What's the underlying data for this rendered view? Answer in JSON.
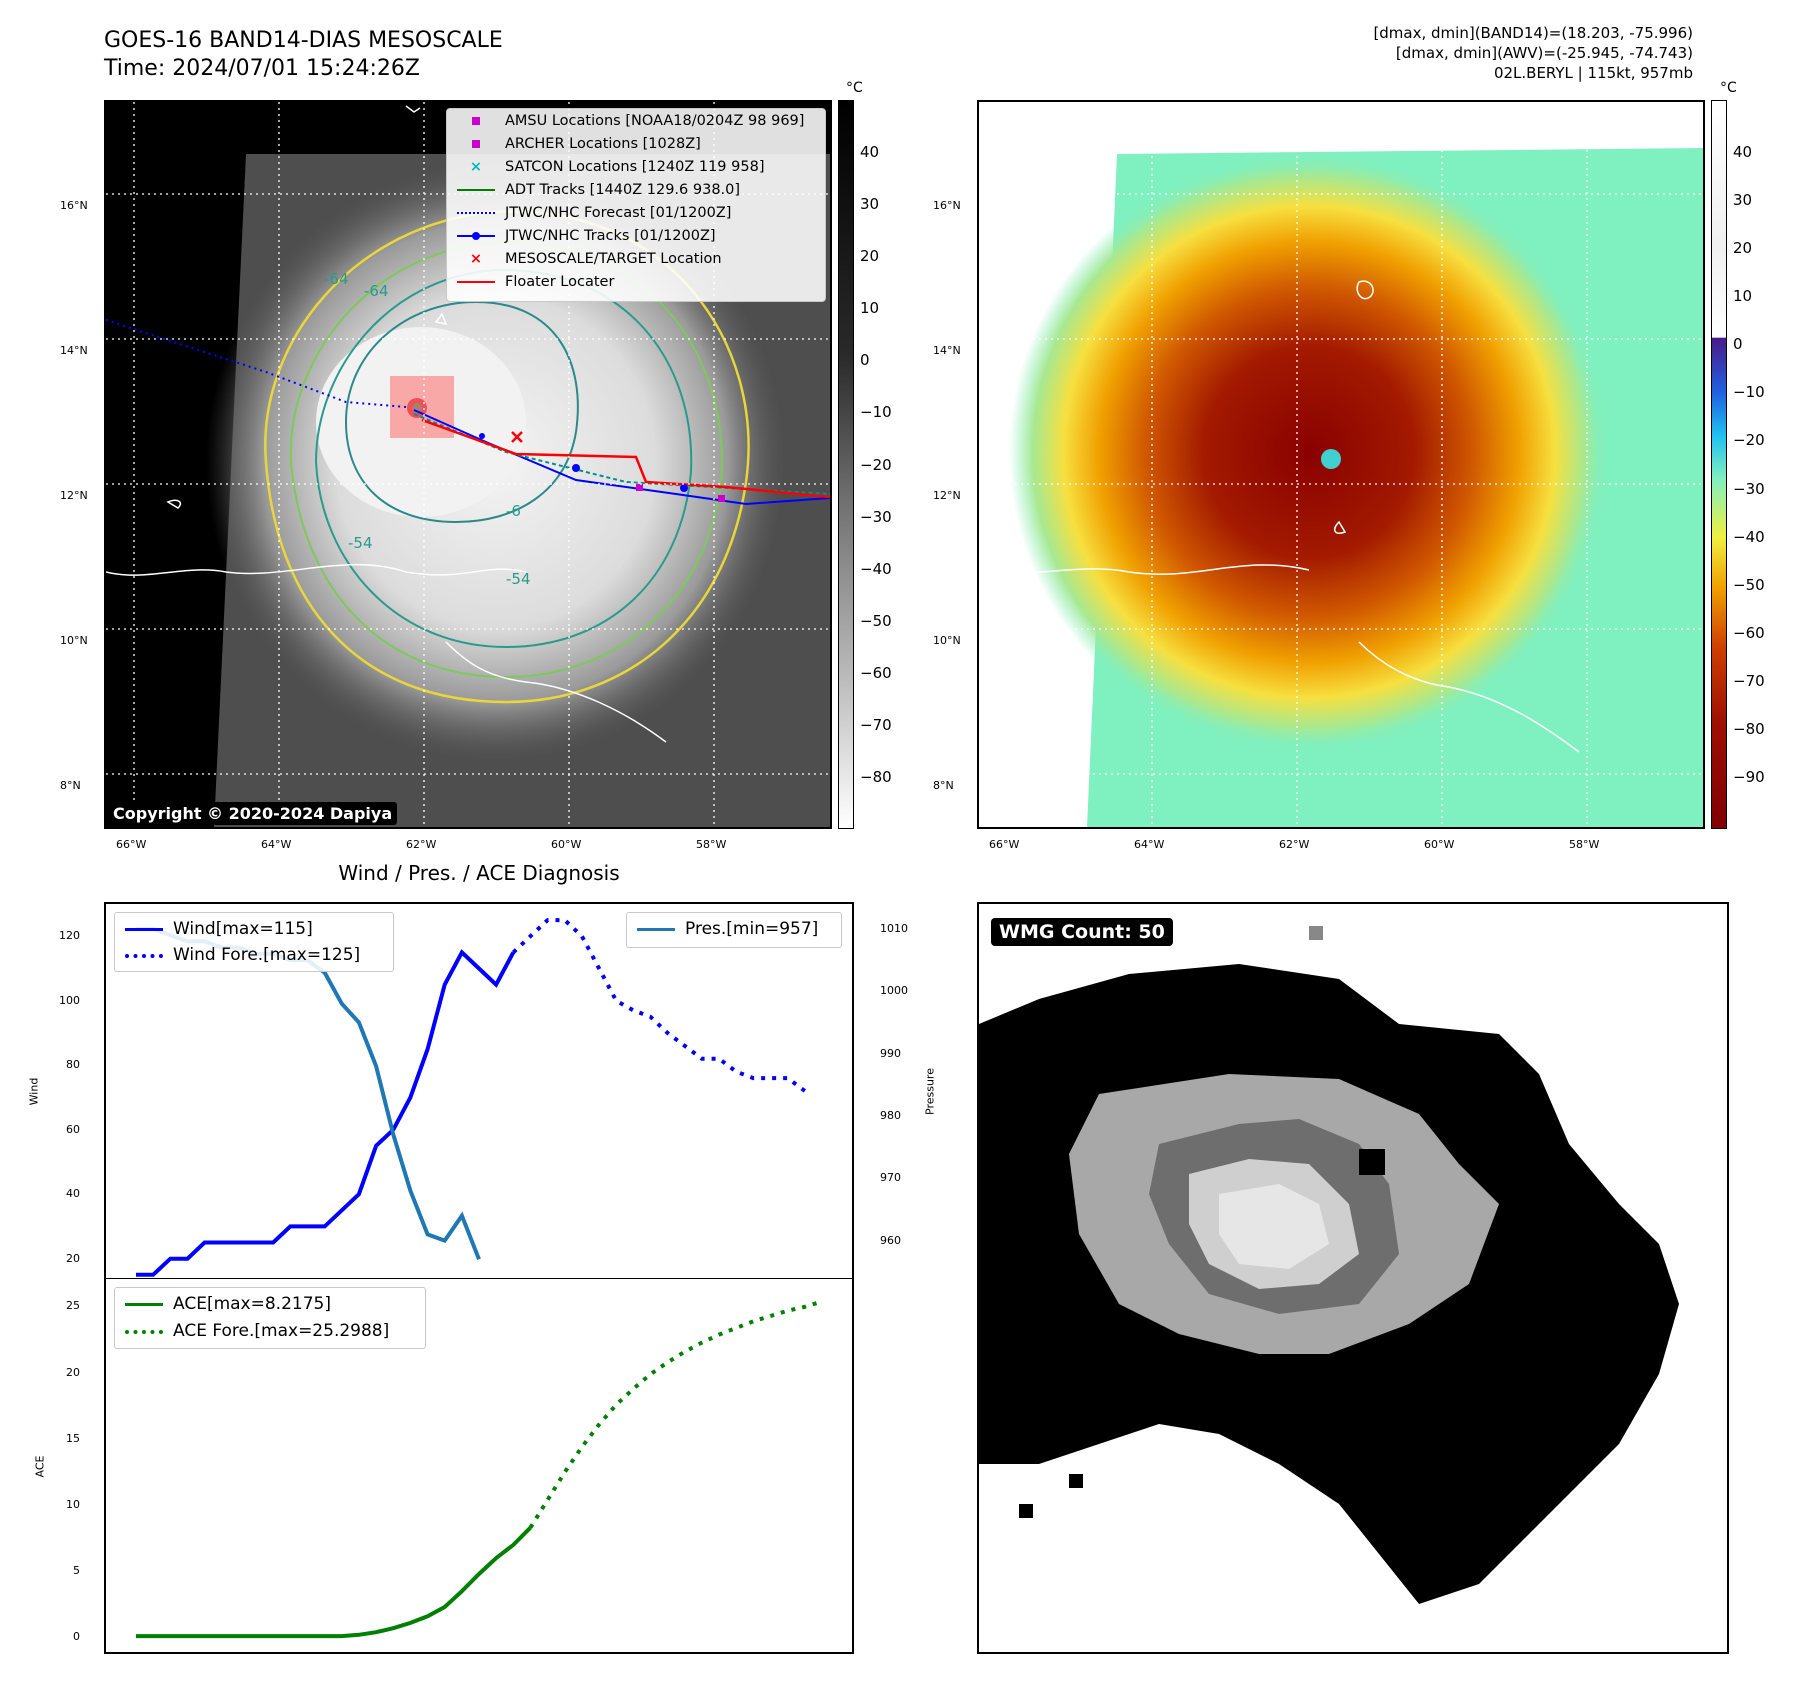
{
  "header": {
    "title_line1": "GOES-16 BAND14-DIAS MESOSCALE",
    "title_line2": "Time: 2024/07/01 15:24:26Z",
    "info_line1": "[dmax, dmin](BAND14)=(18.203, -75.996)",
    "info_line2": "[dmax, dmin](AWV)=(-25.945, -74.743)",
    "info_line3": "02L.BERYL | 115kt, 957mb"
  },
  "map_axes": {
    "lat_labels": [
      "16°N",
      "14°N",
      "12°N",
      "10°N",
      "8°N"
    ],
    "lon_labels": [
      "66°W",
      "64°W",
      "62°W",
      "60°W",
      "58°W"
    ]
  },
  "top_left": {
    "copyright": "Copyright © 2020-2024 Dapiya",
    "colorbar_unit": "°C",
    "colorbar_ticks": [
      "40",
      "30",
      "20",
      "10",
      "0",
      "−10",
      "−20",
      "−30",
      "−40",
      "−50",
      "−60",
      "−70",
      "−80"
    ],
    "contour_labels": [
      "-64",
      "-64",
      "-54",
      "-54",
      "-6"
    ],
    "legend": [
      {
        "label": "AMSU Locations [NOAA18/0204Z 98 969]",
        "color": "#cc00cc",
        "kind": "square"
      },
      {
        "label": "ARCHER Locations [1028Z]",
        "color": "#cc00cc",
        "kind": "square"
      },
      {
        "label": "SATCON Locations [1240Z 119 958]",
        "color": "#00bbbb",
        "kind": "x"
      },
      {
        "label": "ADT Tracks [1440Z 129.6 938.0]",
        "color": "#008000",
        "kind": "line"
      },
      {
        "label": "JTWC/NHC Forecast [01/1200Z]",
        "color": "#0000ff",
        "kind": "dotted"
      },
      {
        "label": "JTWC/NHC Tracks [01/1200Z]",
        "color": "#0000ff",
        "kind": "linemarker"
      },
      {
        "label": "MESOSCALE/TARGET Location",
        "color": "#ff0000",
        "kind": "x"
      },
      {
        "label": "Floater Locater",
        "color": "#ff0000",
        "kind": "line"
      }
    ]
  },
  "top_right": {
    "colorbar_unit": "°C",
    "colorbar_ticks": [
      "40",
      "30",
      "20",
      "10",
      "0",
      "−10",
      "−20",
      "−30",
      "−40",
      "−50",
      "−60",
      "−70",
      "−80",
      "−90"
    ]
  },
  "bottom_left": {
    "title": "Wind / Pres. / ACE Diagnosis"
  },
  "bottom_right": {
    "badge": "WMG Count: 50"
  },
  "chart_data": [
    {
      "type": "line",
      "name": "wind_pressure",
      "ylabel": "Wind",
      "y2label": "Pressure",
      "ylim": [
        14,
        130
      ],
      "y2lim": [
        954,
        1014
      ],
      "yticks": [
        20,
        40,
        60,
        80,
        100,
        120
      ],
      "y2ticks": [
        960,
        970,
        980,
        990,
        1000,
        1010
      ],
      "legend_left": [
        "Wind[max=115]",
        "Wind Fore.[max=125]"
      ],
      "legend_right": [
        "Pres.[min=957]"
      ],
      "series": [
        {
          "name": "Wind[max=115]",
          "color": "#0000ff",
          "style": "solid",
          "axis": "left",
          "values": [
            15,
            15,
            20,
            20,
            25,
            25,
            25,
            25,
            25,
            30,
            30,
            30,
            35,
            40,
            55,
            60,
            70,
            85,
            105,
            115,
            110,
            105,
            115
          ]
        },
        {
          "name": "Wind Fore.[max=125]",
          "color": "#0000ff",
          "style": "dotted",
          "axis": "left",
          "offset": 22,
          "values": [
            115,
            120,
            125,
            125,
            120,
            110,
            100,
            97,
            95,
            90,
            86,
            82,
            82,
            78,
            76,
            76,
            76,
            72
          ]
        },
        {
          "name": "Pres.[min=957]",
          "color": "#1f77b4",
          "style": "solid",
          "axis": "right",
          "values": [
            1010,
            1010,
            1009,
            1008,
            1008,
            1007,
            1007,
            1006,
            1006,
            1005,
            1005,
            1003,
            998,
            995,
            988,
            977,
            968,
            961,
            960,
            964,
            957
          ]
        }
      ]
    },
    {
      "type": "line",
      "name": "ace",
      "ylabel": "ACE",
      "ylim": [
        -1.2,
        27
      ],
      "yticks": [
        0,
        5,
        10,
        15,
        20,
        25
      ],
      "legend": [
        "ACE[max=8.2175]",
        "ACE Fore.[max=25.2988]"
      ],
      "series": [
        {
          "name": "ACE[max=8.2175]",
          "color": "#008000",
          "style": "solid",
          "values": [
            0,
            0,
            0,
            0,
            0,
            0,
            0,
            0,
            0,
            0,
            0,
            0,
            0,
            0.1,
            0.3,
            0.6,
            1.0,
            1.5,
            2.2,
            3.4,
            4.7,
            5.9,
            6.9,
            8.2
          ]
        },
        {
          "name": "ACE Fore.[max=25.2988]",
          "color": "#008000",
          "style": "dotted",
          "offset": 23,
          "values": [
            8.2,
            10.3,
            12.4,
            14.3,
            16.0,
            17.5,
            18.7,
            19.8,
            20.7,
            21.5,
            22.2,
            22.8,
            23.3,
            23.8,
            24.2,
            24.6,
            24.9,
            25.3
          ]
        }
      ]
    }
  ]
}
